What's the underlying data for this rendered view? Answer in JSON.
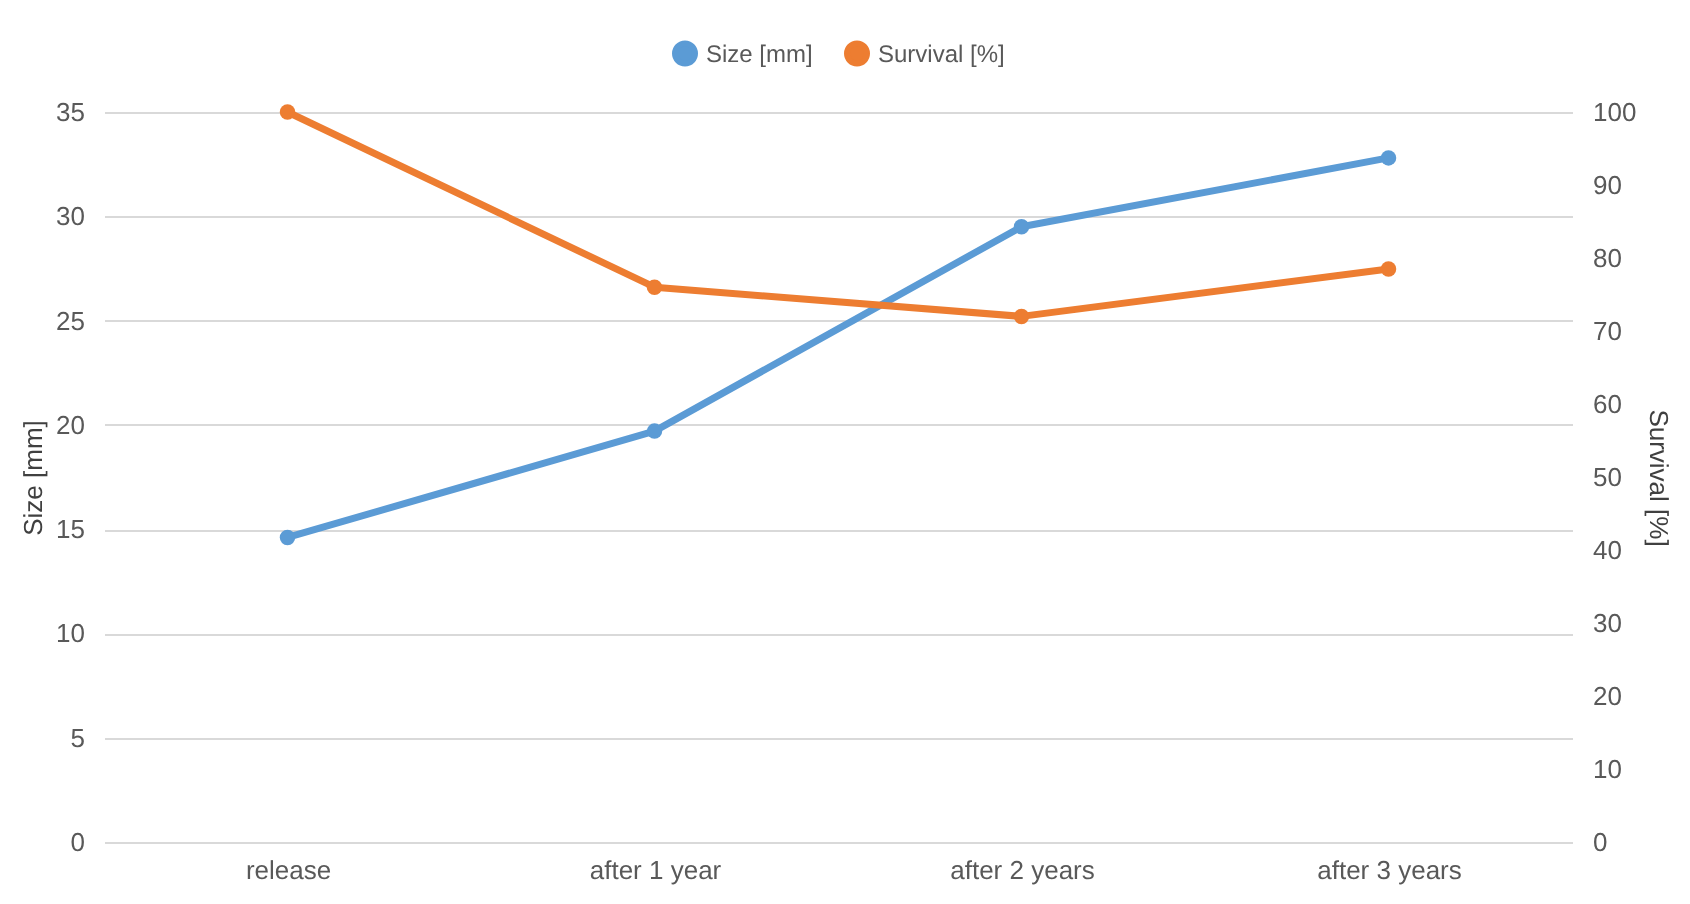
{
  "chart_data": {
    "type": "line",
    "categories": [
      "release",
      "after 1 year",
      "after 2 years",
      "after 3 years"
    ],
    "series": [
      {
        "name": "Size [mm]",
        "color": "#5b9bd5",
        "values": [
          14.6,
          19.7,
          29.5,
          32.8
        ]
      },
      {
        "name": "Survival [%]",
        "color": "#ed7d31",
        "axis": "y2",
        "values": [
          100,
          76,
          72,
          78.5
        ]
      }
    ],
    "ylabel": "Size [mm]",
    "y2label": "Survival [%]",
    "ylim": [
      0,
      35
    ],
    "yticks": [
      0,
      5,
      10,
      15,
      20,
      25,
      30,
      35
    ],
    "y2lim": [
      0,
      100
    ],
    "y2ticks": [
      0,
      10,
      20,
      30,
      40,
      50,
      60,
      70,
      80,
      90,
      100
    ],
    "grid": "y",
    "legend": "top",
    "marker": "circle",
    "line_style": "solid"
  }
}
